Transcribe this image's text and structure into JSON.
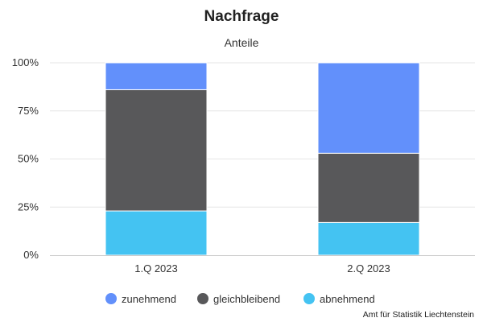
{
  "chart_data": {
    "type": "bar",
    "stacked": true,
    "title": "Nachfrage",
    "subtitle": "Anteile",
    "categories": [
      "1.Q 2023",
      "2.Q 2023"
    ],
    "series": [
      {
        "name": "abnehmend",
        "color": "#44c3f2",
        "values": [
          23,
          17
        ]
      },
      {
        "name": "gleichbleibend",
        "color": "#58585a",
        "values": [
          63,
          36
        ]
      },
      {
        "name": "zunehmend",
        "color": "#6290fb",
        "values": [
          14,
          47
        ]
      }
    ],
    "legend_order": [
      "zunehmend",
      "gleichbleibend",
      "abnehmend"
    ],
    "ylim": [
      0,
      100
    ],
    "yticks": [
      "0%",
      "25%",
      "50%",
      "75%",
      "100%"
    ],
    "ytick_values": [
      0,
      25,
      50,
      75,
      100
    ],
    "grid": true,
    "legend_placement": "bottom-center",
    "credit": "Amt für Statistik Liechtenstein"
  }
}
